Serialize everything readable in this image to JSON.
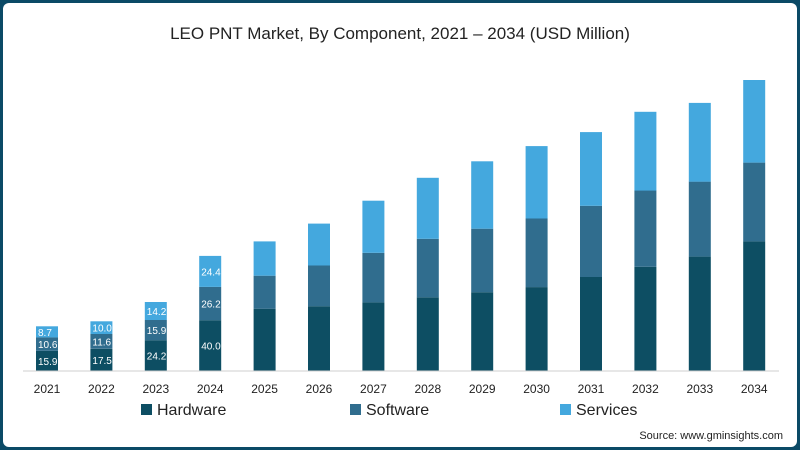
{
  "chart_data": {
    "type": "bar",
    "stacked": true,
    "title": "LEO PNT Market, By Component, 2021 – 2034 (USD Million)",
    "categories": [
      "2021",
      "2022",
      "2023",
      "2024",
      "2025",
      "2026",
      "2027",
      "2028",
      "2029",
      "2030",
      "2031",
      "2032",
      "2033",
      "2034"
    ],
    "series": [
      {
        "name": "Hardware",
        "color": "#0d4e63",
        "values": [
          15.9,
          17.5,
          24.2,
          40.0,
          49,
          51,
          54,
          58,
          62,
          66,
          74,
          82,
          90,
          102
        ]
      },
      {
        "name": "Software",
        "color": "#306d8e",
        "values": [
          10.6,
          11.6,
          15.9,
          26.2,
          26,
          32,
          39,
          46,
          50,
          54,
          56,
          60,
          59,
          62
        ]
      },
      {
        "name": "Services",
        "color": "#44a8de",
        "values": [
          8.7,
          10.0,
          14.2,
          24.4,
          27,
          33,
          41,
          48,
          53,
          57,
          58,
          62,
          62,
          65
        ]
      }
    ],
    "data_labels": [
      [
        "15.9",
        "17.5",
        "24.2",
        "40.0"
      ],
      [
        "10.6",
        "11.6",
        "15.9",
        "26.2"
      ],
      [
        "8.7",
        "10.0",
        "14.2",
        "24.4"
      ]
    ],
    "ylim": [
      0,
      240
    ],
    "legend_position": "bottom",
    "source": "Source: www.gminsights.com"
  }
}
